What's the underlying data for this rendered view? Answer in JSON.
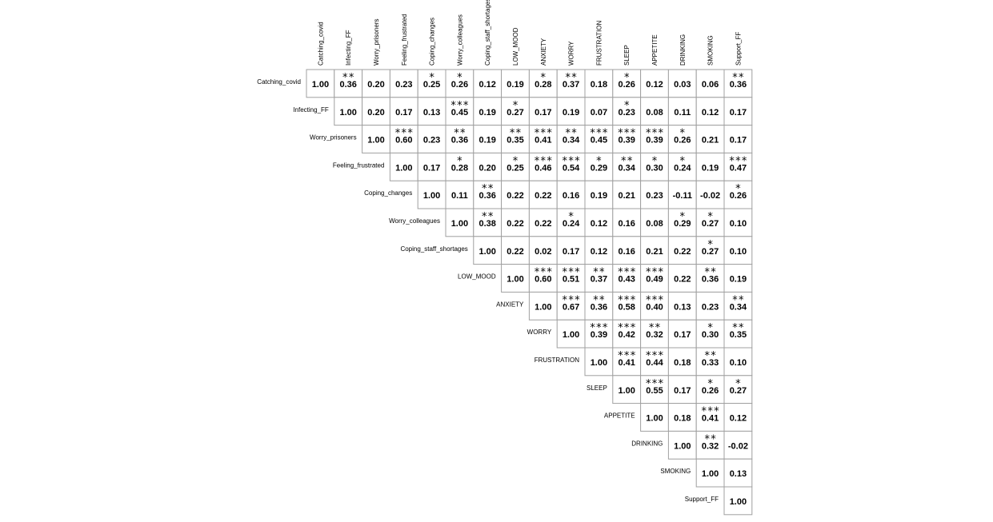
{
  "chart_data": {
    "type": "heatmap",
    "title": "",
    "variables": [
      "Catching_covid",
      "Infecting_FF",
      "Worry_prisoners",
      "Feeling_frustrated",
      "Coping_changes",
      "Worry_colleagues",
      "Coping_staff_shortages",
      "LOW_MOOD",
      "ANXIETY",
      "WORRY",
      "FRUSTRATION",
      "SLEEP",
      "APPETITE",
      "DRINKING",
      "SMOKING",
      "Support_FF"
    ],
    "values": [
      [
        "1.00",
        "0.36",
        "0.20",
        "0.23",
        "0.25",
        "0.26",
        "0.12",
        "0.19",
        "0.28",
        "0.37",
        "0.18",
        "0.26",
        "0.12",
        "0.03",
        "0.06",
        "0.36"
      ],
      [
        "",
        "1.00",
        "0.20",
        "0.17",
        "0.13",
        "0.45",
        "0.19",
        "0.27",
        "0.17",
        "0.19",
        "0.07",
        "0.23",
        "0.08",
        "0.11",
        "0.12",
        "0.17"
      ],
      [
        "",
        "",
        "1.00",
        "0.60",
        "0.23",
        "0.36",
        "0.19",
        "0.35",
        "0.41",
        "0.34",
        "0.45",
        "0.39",
        "0.39",
        "0.26",
        "0.21",
        "0.17"
      ],
      [
        "",
        "",
        "",
        "1.00",
        "0.17",
        "0.28",
        "0.20",
        "0.25",
        "0.46",
        "0.54",
        "0.29",
        "0.34",
        "0.30",
        "0.24",
        "0.19",
        "0.47"
      ],
      [
        "",
        "",
        "",
        "",
        "1.00",
        "0.11",
        "0.36",
        "0.22",
        "0.22",
        "0.16",
        "0.19",
        "0.21",
        "0.23",
        "-0.11",
        "-0.02",
        "0.26"
      ],
      [
        "",
        "",
        "",
        "",
        "",
        "1.00",
        "0.38",
        "0.22",
        "0.22",
        "0.24",
        "0.12",
        "0.16",
        "0.08",
        "0.29",
        "0.27",
        "0.10"
      ],
      [
        "",
        "",
        "",
        "",
        "",
        "",
        "1.00",
        "0.22",
        "0.02",
        "0.17",
        "0.12",
        "0.16",
        "0.21",
        "0.22",
        "0.27",
        "0.10"
      ],
      [
        "",
        "",
        "",
        "",
        "",
        "",
        "",
        "1.00",
        "0.60",
        "0.51",
        "0.37",
        "0.43",
        "0.49",
        "0.22",
        "0.36",
        "0.19"
      ],
      [
        "",
        "",
        "",
        "",
        "",
        "",
        "",
        "",
        "1.00",
        "0.67",
        "0.36",
        "0.58",
        "0.40",
        "0.13",
        "0.23",
        "0.34"
      ],
      [
        "",
        "",
        "",
        "",
        "",
        "",
        "",
        "",
        "",
        "1.00",
        "0.39",
        "0.42",
        "0.32",
        "0.17",
        "0.30",
        "0.35"
      ],
      [
        "",
        "",
        "",
        "",
        "",
        "",
        "",
        "",
        "",
        "",
        "1.00",
        "0.41",
        "0.44",
        "0.18",
        "0.33",
        "0.10"
      ],
      [
        "",
        "",
        "",
        "",
        "",
        "",
        "",
        "",
        "",
        "",
        "",
        "1.00",
        "0.55",
        "0.17",
        "0.26",
        "0.27"
      ],
      [
        "",
        "",
        "",
        "",
        "",
        "",
        "",
        "",
        "",
        "",
        "",
        "",
        "1.00",
        "0.18",
        "0.41",
        "0.12"
      ],
      [
        "",
        "",
        "",
        "",
        "",
        "",
        "",
        "",
        "",
        "",
        "",
        "",
        "",
        "1.00",
        "0.32",
        "-0.02"
      ],
      [
        "",
        "",
        "",
        "",
        "",
        "",
        "",
        "",
        "",
        "",
        "",
        "",
        "",
        "",
        "1.00",
        "0.13"
      ],
      [
        "",
        "",
        "",
        "",
        "",
        "",
        "",
        "",
        "",
        "",
        "",
        "",
        "",
        "",
        "",
        "1.00"
      ]
    ],
    "stars": [
      [
        "",
        "**",
        "",
        "",
        "*",
        "*",
        "",
        "",
        "*",
        "**",
        "",
        "*",
        "",
        "",
        "",
        "**"
      ],
      [
        "",
        "",
        "",
        "",
        "",
        "***",
        "",
        "*",
        "",
        "",
        "",
        "*",
        "",
        "",
        "",
        ""
      ],
      [
        "",
        "",
        "",
        "***",
        "",
        "**",
        "",
        "**",
        "***",
        "**",
        "***",
        "***",
        "***",
        "*",
        "",
        ""
      ],
      [
        "",
        "",
        "",
        "",
        "",
        "*",
        "",
        "*",
        "***",
        "***",
        "*",
        "**",
        "*",
        "*",
        "",
        "***"
      ],
      [
        "",
        "",
        "",
        "",
        "",
        "",
        "**",
        "",
        "",
        "",
        "",
        "",
        "",
        "",
        "",
        "*"
      ],
      [
        "",
        "",
        "",
        "",
        "",
        "",
        "**",
        "",
        "",
        "*",
        "",
        "",
        "",
        "*",
        "*",
        ""
      ],
      [
        "",
        "",
        "",
        "",
        "",
        "",
        "",
        "",
        "",
        "",
        "",
        "",
        "",
        "",
        "*",
        ""
      ],
      [
        "",
        "",
        "",
        "",
        "",
        "",
        "",
        "",
        "***",
        "***",
        "**",
        "***",
        "***",
        "",
        "**",
        ""
      ],
      [
        "",
        "",
        "",
        "",
        "",
        "",
        "",
        "",
        "",
        "***",
        "**",
        "***",
        "***",
        "",
        "",
        "**"
      ],
      [
        "",
        "",
        "",
        "",
        "",
        "",
        "",
        "",
        "",
        "",
        "***",
        "***",
        "**",
        "",
        "*",
        "**"
      ],
      [
        "",
        "",
        "",
        "",
        "",
        "",
        "",
        "",
        "",
        "",
        "",
        "***",
        "***",
        "",
        "**",
        ""
      ],
      [
        "",
        "",
        "",
        "",
        "",
        "",
        "",
        "",
        "",
        "",
        "",
        "",
        "***",
        "",
        "*",
        "*"
      ],
      [
        "",
        "",
        "",
        "",
        "",
        "",
        "",
        "",
        "",
        "",
        "",
        "",
        "",
        "",
        "***",
        ""
      ],
      [
        "",
        "",
        "",
        "",
        "",
        "",
        "",
        "",
        "",
        "",
        "",
        "",
        "",
        "",
        "**",
        ""
      ],
      [
        "",
        "",
        "",
        "",
        "",
        "",
        "",
        "",
        "",
        "",
        "",
        "",
        "",
        "",
        "",
        ""
      ],
      [
        "",
        "",
        "",
        "",
        "",
        "",
        "",
        "",
        "",
        "",
        "",
        "",
        "",
        "",
        "",
        ""
      ]
    ],
    "grid": true,
    "legend": "none"
  }
}
